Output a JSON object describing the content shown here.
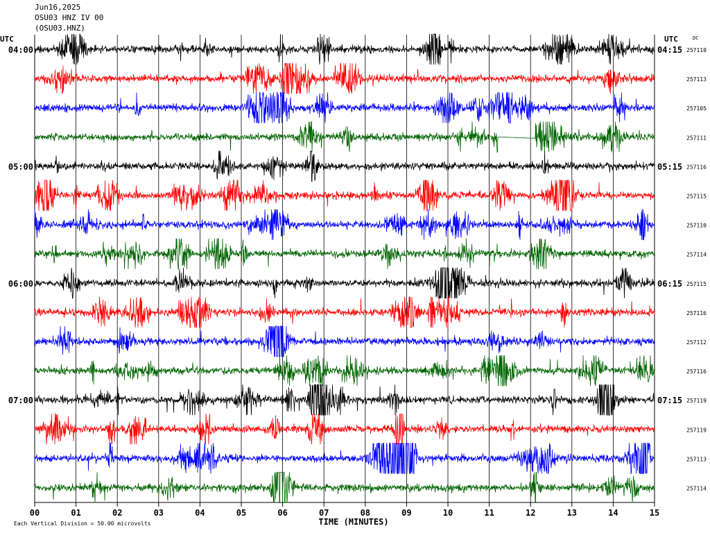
{
  "header": {
    "date": "Jun16,2025",
    "station": "OSU03 HNZ IV 00",
    "code": "(OSU03.HNZ)"
  },
  "chart_data": {
    "type": "line",
    "title": "",
    "xlabel": "TIME (MINUTES)",
    "ylabel": "",
    "xlim": [
      0,
      15
    ],
    "x_ticks": [
      "00",
      "01",
      "02",
      "03",
      "04",
      "05",
      "06",
      "07",
      "08",
      "09",
      "10",
      "11",
      "12",
      "13",
      "14",
      "15"
    ],
    "left_axis_label": "UTC",
    "right_axis_label": "UTC",
    "dc_label": "DC",
    "left_time_labels": [
      {
        "row": 0,
        "text": "04:00"
      },
      {
        "row": 4,
        "text": "05:00"
      },
      {
        "row": 8,
        "text": "06:00"
      },
      {
        "row": 12,
        "text": "07:00"
      }
    ],
    "right_time_labels": [
      {
        "row": 0,
        "text": "04:15"
      },
      {
        "row": 4,
        "text": "05:15"
      },
      {
        "row": 8,
        "text": "06:15"
      },
      {
        "row": 12,
        "text": "07:15"
      }
    ],
    "trace_colors": [
      "#000000",
      "#ff0000",
      "#0000ff",
      "#006400"
    ],
    "dc_offsets": [
      "257110",
      "257113",
      "257105",
      "257111",
      "257116",
      "257115",
      "257110",
      "257114",
      "257115",
      "257116",
      "257112",
      "257116",
      "257119",
      "257119",
      "257113",
      "257114"
    ],
    "grid": true,
    "footnote": "Each Vertical Division =   50.00 microvolts"
  }
}
